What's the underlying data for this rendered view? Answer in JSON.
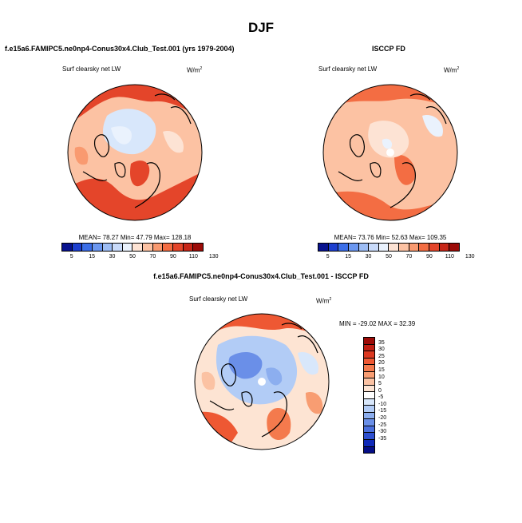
{
  "figure": {
    "season": "DJF",
    "panel1": {
      "title": "f.e15a6.FAMIPC5.ne0np4-Conus30x4.Club_Test.001 (yrs 1979-2004)",
      "var": "Surf clearsky net LW",
      "units": "W/m",
      "units_exp": "2",
      "stats": "MEAN=  78.27  Min=  47.79  Max= 128.18"
    },
    "panel2": {
      "title": "ISCCP FD",
      "var": "Surf clearsky net LW",
      "units": "W/m",
      "units_exp": "2",
      "stats": "MEAN=  73.76  Min=  52.63  Max= 109.35"
    },
    "panel3": {
      "title": "f.e15a6.FAMIPC5.ne0np4-Conus30x4.Club_Test.001 - ISCCP FD",
      "var": "Surf clearsky net LW",
      "units": "W/m",
      "units_exp": "2",
      "stats": "MIN = -29.02 MAX =  32.39"
    }
  },
  "colorbar_top": {
    "labels": [
      "5",
      "15",
      "30",
      "50",
      "70",
      "90",
      "110",
      "130"
    ],
    "colors": [
      "#08128f",
      "#1d3fcf",
      "#3b6ee8",
      "#6b97f0",
      "#9dbdf5",
      "#c9dbfa",
      "#eaf2fd",
      "#fde3d4",
      "#fcc2a3",
      "#f99a70",
      "#f36d43",
      "#e4452a",
      "#c72617",
      "#9c0b07"
    ]
  },
  "colorbar_diff": {
    "labels": [
      "35",
      "30",
      "25",
      "20",
      "15",
      "10",
      "5",
      "0",
      "-5",
      "-10",
      "-15",
      "-20",
      "-25",
      "-30",
      "-35"
    ],
    "colors": [
      "#9c0b07",
      "#c01e12",
      "#dc3820",
      "#ee5833",
      "#f47a4d",
      "#f89d72",
      "#fbc2a3",
      "#fde4d3",
      "#ffffff",
      "#d8e7fb",
      "#b2ccf6",
      "#8caeef",
      "#6a8fe8",
      "#4a6fde",
      "#2d4fd0",
      "#102ab9",
      "#050e87"
    ]
  }
}
